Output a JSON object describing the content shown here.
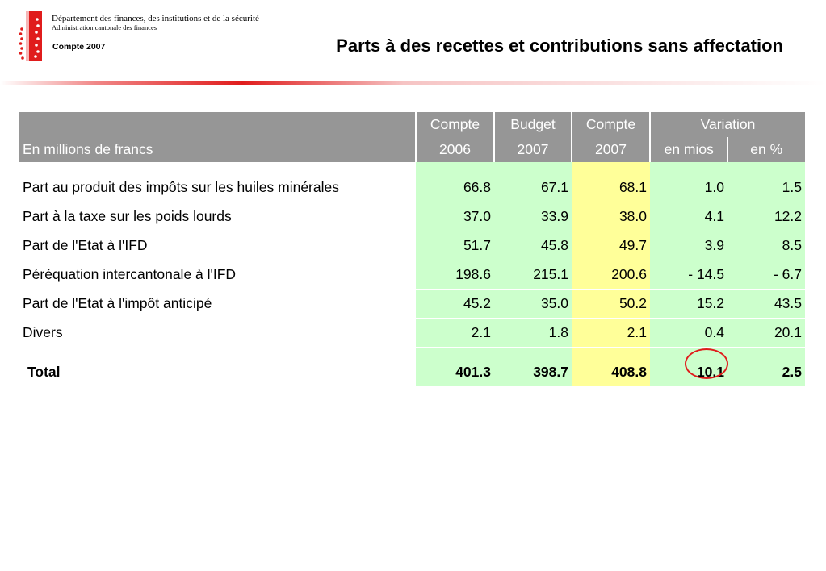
{
  "header": {
    "department": "Département des finances, des institutions et de la sécurité",
    "administration": "Administration cantonale des finances",
    "report": "Compte 2007",
    "title": "Parts à des recettes et contributions sans affectation"
  },
  "colors": {
    "accent_red": "#e01c1c",
    "header_gray": "#969696",
    "green_fill": "#ccffcc",
    "yellow_fill": "#ffff99"
  },
  "table": {
    "unit_label": "En millions de francs",
    "columns": [
      {
        "top": "Compte",
        "bottom": "2006"
      },
      {
        "top": "Budget",
        "bottom": "2007"
      },
      {
        "top": "Compte",
        "bottom": "2007"
      }
    ],
    "variation": {
      "label": "Variation",
      "sub": [
        "en mios",
        "en %"
      ]
    },
    "rows": [
      {
        "label": "Part au produit des impôts sur les huiles minérales",
        "values": [
          "66.8",
          "67.1",
          "68.1",
          "1.0",
          "1.5"
        ]
      },
      {
        "label": "Part à la taxe sur les poids lourds",
        "values": [
          "37.0",
          "33.9",
          "38.0",
          "4.1",
          "12.2"
        ]
      },
      {
        "label": "Part de l'Etat à l'IFD",
        "values": [
          "51.7",
          "45.8",
          "49.7",
          "3.9",
          "8.5"
        ]
      },
      {
        "label": "Péréquation intercantonale à l'IFD",
        "values": [
          "198.6",
          "215.1",
          "200.6",
          "- 14.5",
          "- 6.7"
        ]
      },
      {
        "label": "Part de l'Etat à l'impôt anticipé",
        "values": [
          "45.2",
          "35.0",
          "50.2",
          "15.2",
          "43.5"
        ]
      },
      {
        "label": "Divers",
        "values": [
          "2.1",
          "1.8",
          "2.1",
          "0.4",
          "20.1"
        ]
      }
    ],
    "total": {
      "label": "Total",
      "values": [
        "401.3",
        "398.7",
        "408.8",
        "10.1",
        "2.5"
      ]
    }
  }
}
